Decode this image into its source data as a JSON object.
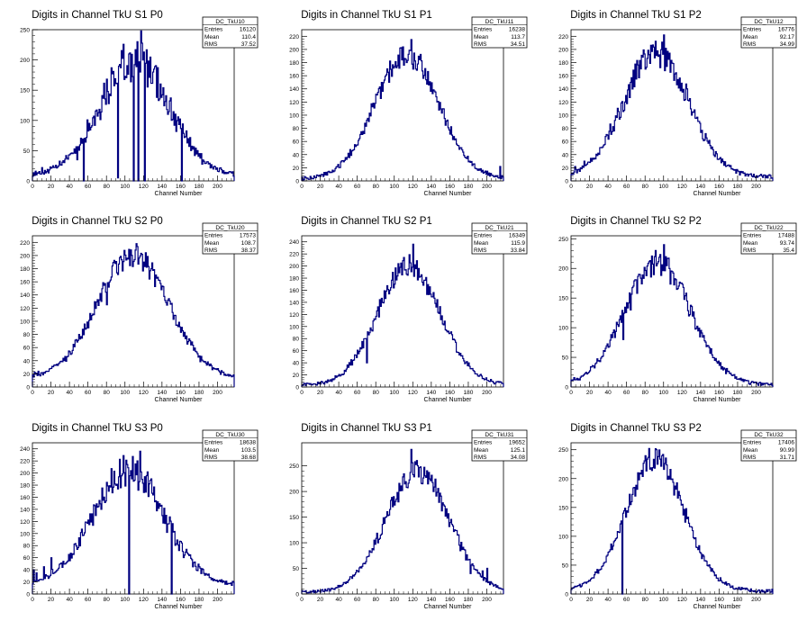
{
  "page": {
    "background": "#ffffff",
    "line_color": "#000080"
  },
  "chart_data": [
    {
      "type": "histogram",
      "panel": "S1 P0",
      "title": "Digits in Channel TkU S1 P0",
      "xlabel": "Channel Number",
      "xlim": [
        0,
        218
      ],
      "ylim": [
        0,
        250
      ],
      "yticks": [
        0,
        50,
        100,
        150,
        200,
        250
      ],
      "xticks": [
        0,
        20,
        40,
        60,
        80,
        100,
        120,
        140,
        160,
        180,
        200
      ],
      "stats": {
        "name": "DC_TkU10",
        "entries": "16120",
        "mean": "110.4",
        "rms": "37.52"
      },
      "profile": {
        "mean": 110.4,
        "rms": 37.52,
        "peak": 200,
        "floor": 8,
        "noise": 0.18,
        "spikes": [
          [
            3,
            16
          ],
          [
            10,
            22
          ],
          [
            28,
            25
          ],
          [
            48,
            35
          ],
          [
            55,
            0
          ],
          [
            92,
            5
          ],
          [
            109,
            0
          ],
          [
            114,
            0
          ],
          [
            117,
            248
          ],
          [
            121,
            0
          ],
          [
            130,
            180
          ],
          [
            161,
            0
          ],
          [
            180,
            45
          ]
        ]
      }
    },
    {
      "type": "histogram",
      "panel": "S1 P1",
      "title": "Digits in Channel TkU S1 P1",
      "xlabel": "Channel Number",
      "xlim": [
        0,
        218
      ],
      "ylim": [
        0,
        230
      ],
      "yticks": [
        0,
        20,
        40,
        60,
        80,
        100,
        120,
        140,
        160,
        180,
        200,
        220
      ],
      "xticks": [
        0,
        20,
        40,
        60,
        80,
        100,
        120,
        140,
        160,
        180,
        200
      ],
      "stats": {
        "name": "DC_TkU11",
        "entries": "16238",
        "mean": "113.7",
        "rms": "34.51"
      },
      "profile": {
        "mean": 113.7,
        "rms": 34.51,
        "peak": 192,
        "floor": 3,
        "noise": 0.09,
        "spikes": [
          [
            118,
            215
          ],
          [
            214,
            22
          ]
        ]
      }
    },
    {
      "type": "histogram",
      "panel": "S1 P2",
      "title": "Digits in Channel TkU S1 P2",
      "xlabel": "Channel Number",
      "xlim": [
        0,
        218
      ],
      "ylim": [
        0,
        230
      ],
      "yticks": [
        0,
        20,
        40,
        60,
        80,
        100,
        120,
        140,
        160,
        180,
        200,
        220
      ],
      "xticks": [
        0,
        20,
        40,
        60,
        80,
        100,
        120,
        140,
        160,
        180,
        200
      ],
      "stats": {
        "name": "DC_TkU12",
        "entries": "16776",
        "mean": "92.17",
        "rms": "34.99"
      },
      "profile": {
        "mean": 92.17,
        "rms": 34.99,
        "peak": 195,
        "floor": 6,
        "noise": 0.12,
        "spikes": [
          [
            4,
            22
          ],
          [
            14,
            30
          ],
          [
            20,
            28
          ],
          [
            100,
            222
          ],
          [
            58,
            120
          ],
          [
            44,
            75
          ],
          [
            125,
            140
          ]
        ]
      }
    },
    {
      "type": "histogram",
      "panel": "S2 P0",
      "title": "Digits in Channel TkU S2 P0",
      "xlabel": "Channel Number",
      "xlim": [
        0,
        218
      ],
      "ylim": [
        0,
        230
      ],
      "yticks": [
        0,
        20,
        40,
        60,
        80,
        100,
        120,
        140,
        160,
        180,
        200,
        220
      ],
      "xticks": [
        0,
        20,
        40,
        60,
        80,
        100,
        120,
        140,
        160,
        180,
        200
      ],
      "stats": {
        "name": "DC_TkU20",
        "entries": "17573",
        "mean": "108.7",
        "rms": "38.37"
      },
      "profile": {
        "mean": 108.7,
        "rms": 38.37,
        "peak": 200,
        "floor": 14,
        "noise": 0.09,
        "spikes": [
          [
            112,
            218
          ],
          [
            60,
            90
          ],
          [
            80,
            125
          ]
        ]
      }
    },
    {
      "type": "histogram",
      "panel": "S2 P1",
      "title": "Digits in Channel TkU S2 P1",
      "xlabel": "Channel Number",
      "xlim": [
        0,
        218
      ],
      "ylim": [
        0,
        250
      ],
      "yticks": [
        0,
        20,
        40,
        60,
        80,
        100,
        120,
        140,
        160,
        180,
        200,
        220,
        240
      ],
      "xticks": [
        0,
        20,
        40,
        60,
        80,
        100,
        120,
        140,
        160,
        180,
        200
      ],
      "stats": {
        "name": "DC_TkU21",
        "entries": "16349",
        "mean": "115.9",
        "rms": "33.84"
      },
      "profile": {
        "mean": 115.9,
        "rms": 33.84,
        "peak": 200,
        "floor": 3,
        "noise": 0.09,
        "spikes": [
          [
            120,
            236
          ],
          [
            70,
            40
          ],
          [
            100,
            170
          ]
        ]
      }
    },
    {
      "type": "histogram",
      "panel": "S2 P2",
      "title": "Digits in Channel TkU S2 P2",
      "xlabel": "Channel Number",
      "xlim": [
        0,
        218
      ],
      "ylim": [
        0,
        255
      ],
      "yticks": [
        0,
        50,
        100,
        150,
        200,
        250
      ],
      "xticks": [
        0,
        20,
        40,
        60,
        80,
        100,
        120,
        140,
        160,
        180,
        200
      ],
      "stats": {
        "name": "DC_TkU22",
        "entries": "17488",
        "mean": "93.74",
        "rms": "35.4"
      },
      "profile": {
        "mean": 93.74,
        "rms": 35.4,
        "peak": 210,
        "floor": 4,
        "noise": 0.1,
        "spikes": [
          [
            100,
            240
          ],
          [
            56,
            80
          ],
          [
            64,
            130
          ]
        ]
      }
    },
    {
      "type": "histogram",
      "panel": "S3 P0",
      "title": "Digits in Channel TkU S3 P0",
      "xlabel": "Channel Number",
      "xlim": [
        0,
        218
      ],
      "ylim": [
        0,
        250
      ],
      "yticks": [
        0,
        20,
        40,
        60,
        80,
        100,
        120,
        140,
        160,
        180,
        200,
        220,
        240
      ],
      "xticks": [
        0,
        20,
        40,
        60,
        80,
        100,
        120,
        140,
        160,
        180,
        200
      ],
      "stats": {
        "name": "DC_TkU30",
        "entries": "18638",
        "mean": "103.5",
        "rms": "38.68"
      },
      "profile": {
        "mean": 103.5,
        "rms": 38.68,
        "peak": 205,
        "floor": 14,
        "noise": 0.14,
        "spikes": [
          [
            1,
            40
          ],
          [
            4,
            35
          ],
          [
            12,
            45
          ],
          [
            20,
            60
          ],
          [
            30,
            50
          ],
          [
            40,
            55
          ],
          [
            104,
            0
          ],
          [
            116,
            236
          ],
          [
            150,
            0
          ],
          [
            180,
            45
          ]
        ]
      }
    },
    {
      "type": "histogram",
      "panel": "S3 P1",
      "title": "Digits in Channel TkU S3 P1",
      "xlabel": "Channel Number",
      "xlim": [
        0,
        218
      ],
      "ylim": [
        0,
        295
      ],
      "yticks": [
        0,
        50,
        100,
        150,
        200,
        250
      ],
      "xticks": [
        0,
        20,
        40,
        60,
        80,
        100,
        120,
        140,
        160,
        180,
        200
      ],
      "stats": {
        "name": "DC_TkU31",
        "entries": "19652",
        "mean": "125.1",
        "rms": "34.08"
      },
      "profile": {
        "mean": 125.1,
        "rms": 34.08,
        "peak": 238,
        "floor": 4,
        "noise": 0.1,
        "spikes": [
          [
            118,
            282
          ],
          [
            182,
            40
          ],
          [
            195,
            45
          ],
          [
            200,
            50
          ]
        ]
      }
    },
    {
      "type": "histogram",
      "panel": "S3 P2",
      "title": "Digits in Channel TkU S3 P2",
      "xlabel": "Channel Number",
      "xlim": [
        0,
        218
      ],
      "ylim": [
        0,
        262
      ],
      "yticks": [
        0,
        50,
        100,
        150,
        200,
        250
      ],
      "xticks": [
        0,
        20,
        40,
        60,
        80,
        100,
        120,
        140,
        160,
        180,
        200
      ],
      "stats": {
        "name": "DC_TkU32",
        "entries": "17406",
        "mean": "90.99",
        "rms": "31.71"
      },
      "profile": {
        "mean": 90.99,
        "rms": 31.71,
        "peak": 232,
        "floor": 5,
        "noise": 0.09,
        "spikes": [
          [
            55,
            0
          ],
          [
            84,
            252
          ],
          [
            92,
            250
          ]
        ]
      }
    }
  ],
  "stats_labels": {
    "entries": "Entries",
    "mean": "Mean",
    "rms": "RMS"
  }
}
